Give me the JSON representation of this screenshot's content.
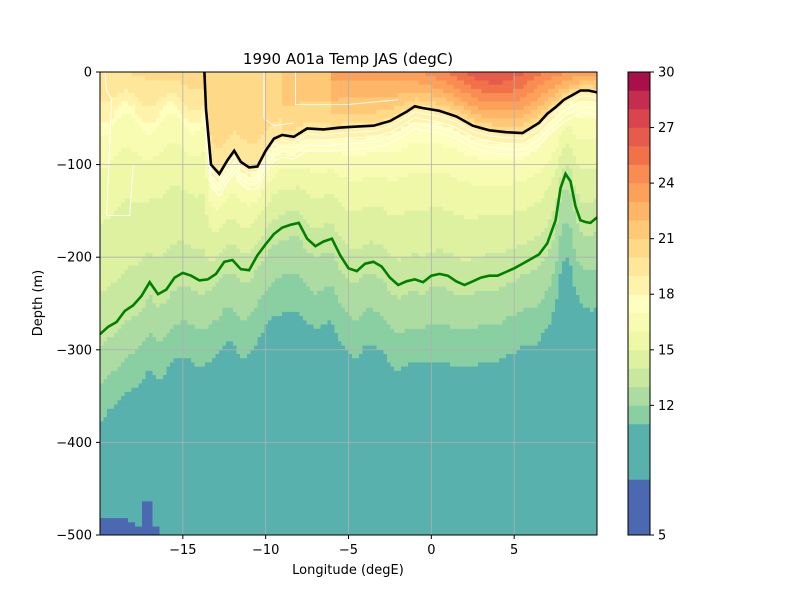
{
  "chart_data": {
    "type": "heatmap",
    "title": "1990 A01a  Temp JAS (degC)",
    "xlabel": "Longitude (degE)",
    "ylabel": "Depth (m)",
    "xlim": [
      -20,
      10
    ],
    "ylim": [
      -500,
      0
    ],
    "xticks": [
      -15,
      -10,
      -5,
      0,
      5
    ],
    "xtick_labels": [
      "−15",
      "−10",
      "−5",
      "0",
      "5"
    ],
    "yticks": [
      0,
      -100,
      -200,
      -300,
      -400,
      -500
    ],
    "ytick_labels": [
      "0",
      "−100",
      "−200",
      "−300",
      "−400",
      "−500"
    ],
    "grid": true,
    "colorbar": {
      "min": 5,
      "max": 30,
      "ticks": [
        5,
        12,
        15,
        18,
        21,
        24,
        27,
        30
      ],
      "tick_labels": [
        "5",
        "12",
        "15",
        "18",
        "21",
        "24",
        "27",
        "30"
      ],
      "levels": [
        5,
        8,
        11,
        12,
        13,
        14,
        15,
        16,
        17,
        18,
        19,
        20,
        21,
        22,
        23,
        24,
        25,
        26,
        27,
        28,
        29,
        30
      ],
      "colors": [
        "#4b68b0",
        "#59b1ae",
        "#89cfa2",
        "#acdca2",
        "#c8e8a0",
        "#ddf1a0",
        "#eef8a6",
        "#f8fbb2",
        "#fefebe",
        "#fff3ac",
        "#fee79a",
        "#fed988",
        "#fec877",
        "#fdb567",
        "#fca05a",
        "#f88c52",
        "#f17149",
        "#e65b4c",
        "#d9444d",
        "#c42d4e",
        "#a9104a"
      ]
    },
    "isotherm_surface_black": [
      [
        -13.7,
        0
      ],
      [
        -13.6,
        -40
      ],
      [
        -13.3,
        -100
      ],
      [
        -12.8,
        -110
      ],
      [
        -12.3,
        -95
      ],
      [
        -11.9,
        -85
      ],
      [
        -11.5,
        -97
      ],
      [
        -11.0,
        -103
      ],
      [
        -10.5,
        -102
      ],
      [
        -10.0,
        -85
      ],
      [
        -9.5,
        -72
      ],
      [
        -9.0,
        -68
      ],
      [
        -8.3,
        -70
      ],
      [
        -7.5,
        -61
      ],
      [
        -6.5,
        -62
      ],
      [
        -5.5,
        -60
      ],
      [
        -4.5,
        -59
      ],
      [
        -3.5,
        -58
      ],
      [
        -2.5,
        -53
      ],
      [
        -1.5,
        -43
      ],
      [
        -1.0,
        -37
      ],
      [
        -0.5,
        -39
      ],
      [
        0.5,
        -42
      ],
      [
        1.5,
        -48
      ],
      [
        2.5,
        -58
      ],
      [
        3.5,
        -63
      ],
      [
        4.5,
        -65
      ],
      [
        5.5,
        -66
      ],
      [
        6.5,
        -55
      ],
      [
        7.0,
        -45
      ],
      [
        7.5,
        -38
      ],
      [
        8.0,
        -30
      ],
      [
        8.5,
        -25
      ],
      [
        9.0,
        -20
      ],
      [
        9.5,
        -20
      ],
      [
        10.0,
        -22
      ]
    ],
    "isotherm_deep_green": [
      [
        -20,
        -283
      ],
      [
        -19.5,
        -275
      ],
      [
        -19,
        -270
      ],
      [
        -18.5,
        -258
      ],
      [
        -18,
        -252
      ],
      [
        -17.5,
        -242
      ],
      [
        -17,
        -227
      ],
      [
        -16.5,
        -240
      ],
      [
        -16,
        -235
      ],
      [
        -15.5,
        -222
      ],
      [
        -15,
        -217
      ],
      [
        -14.5,
        -220
      ],
      [
        -14,
        -225
      ],
      [
        -13.5,
        -224
      ],
      [
        -13,
        -218
      ],
      [
        -12.5,
        -205
      ],
      [
        -12,
        -203
      ],
      [
        -11.5,
        -213
      ],
      [
        -11,
        -214
      ],
      [
        -10.5,
        -198
      ],
      [
        -10,
        -186
      ],
      [
        -9.5,
        -175
      ],
      [
        -9,
        -168
      ],
      [
        -8.5,
        -165
      ],
      [
        -8,
        -163
      ],
      [
        -7.5,
        -180
      ],
      [
        -7,
        -188
      ],
      [
        -6.5,
        -183
      ],
      [
        -6,
        -180
      ],
      [
        -5.5,
        -198
      ],
      [
        -5,
        -212
      ],
      [
        -4.5,
        -215
      ],
      [
        -4,
        -207
      ],
      [
        -3.5,
        -205
      ],
      [
        -3,
        -210
      ],
      [
        -2.5,
        -222
      ],
      [
        -2,
        -230
      ],
      [
        -1.5,
        -226
      ],
      [
        -1,
        -224
      ],
      [
        -0.5,
        -227
      ],
      [
        0,
        -220
      ],
      [
        0.5,
        -218
      ],
      [
        1,
        -220
      ],
      [
        1.5,
        -226
      ],
      [
        2,
        -230
      ],
      [
        2.5,
        -226
      ],
      [
        3,
        -222
      ],
      [
        3.5,
        -220
      ],
      [
        4,
        -220
      ],
      [
        4.5,
        -216
      ],
      [
        5,
        -212
      ],
      [
        5.5,
        -207
      ],
      [
        6,
        -202
      ],
      [
        6.5,
        -197
      ],
      [
        7,
        -185
      ],
      [
        7.5,
        -160
      ],
      [
        7.8,
        -125
      ],
      [
        8.1,
        -110
      ],
      [
        8.4,
        -118
      ],
      [
        8.7,
        -145
      ],
      [
        9.0,
        -160
      ],
      [
        9.3,
        -162
      ],
      [
        9.6,
        -163
      ],
      [
        10.0,
        -157
      ]
    ]
  }
}
